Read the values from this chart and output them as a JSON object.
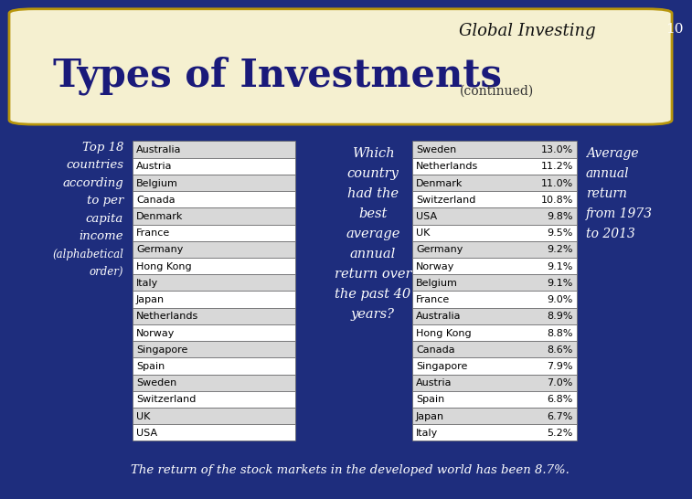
{
  "title": "Types of Investments",
  "subtitle": "Global Investing",
  "continued": "(continued)",
  "slide_number": "10",
  "bg_color": "#1e2d7d",
  "header_bg": "#f5f0d0",
  "header_border": "#b8960c",
  "left_label_lines": [
    "Top 18",
    "countries",
    "according",
    "to per",
    "capita",
    "income",
    "(alphabetical",
    "order)"
  ],
  "alpha_countries": [
    "Australia",
    "Austria",
    "Belgium",
    "Canada",
    "Denmark",
    "France",
    "Germany",
    "Hong Kong",
    "Italy",
    "Japan",
    "Netherlands",
    "Norway",
    "Singapore",
    "Spain",
    "Sweden",
    "Switzerland",
    "UK",
    "USA"
  ],
  "ranked_countries": [
    "Sweden",
    "Netherlands",
    "Denmark",
    "Switzerland",
    "USA",
    "UK",
    "Germany",
    "Norway",
    "Belgium",
    "France",
    "Australia",
    "Hong Kong",
    "Canada",
    "Singapore",
    "Austria",
    "Spain",
    "Japan",
    "Italy"
  ],
  "ranked_returns": [
    "13.0%",
    "11.2%",
    "11.0%",
    "10.8%",
    "9.8%",
    "9.5%",
    "9.2%",
    "9.1%",
    "9.1%",
    "9.0%",
    "8.9%",
    "8.8%",
    "8.6%",
    "7.9%",
    "7.0%",
    "6.8%",
    "6.7%",
    "5.2%"
  ],
  "middle_text": [
    "Which",
    "country",
    "had the",
    "best",
    "average",
    "annual",
    "return over",
    "the past 40",
    "years?"
  ],
  "right_label_lines": [
    "Average",
    "annual",
    "return",
    "from 1973",
    "to 2013"
  ],
  "footer": "The return of the stock markets in the developed world has been 8.7%.",
  "table_bg_light": "#d8d8d8",
  "table_bg_white": "#ffffff",
  "table_border": "#666666",
  "table_border_dark": "#333333"
}
